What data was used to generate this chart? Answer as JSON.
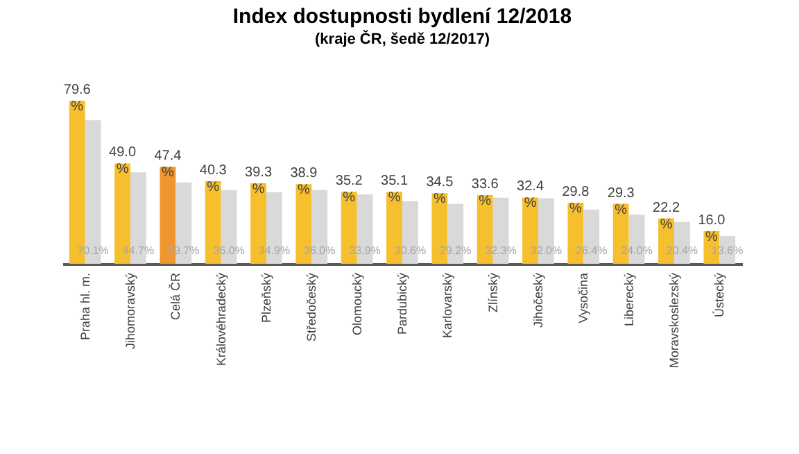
{
  "chart_data": {
    "type": "bar",
    "title": "Index dostupnosti bydlení 12/2018",
    "subtitle": "(kraje ČR, šedě 12/2017)",
    "categories": [
      "Praha hl. m.",
      "Jihomoravský",
      "Celá ČR",
      "Královéhradecký",
      "Plzeňský",
      "Středočeský",
      "Olomoucký",
      "Pardubický",
      "Karlovarský",
      "Zlínský",
      "Jihočeský",
      "Vysočina",
      "Liberecký",
      "Moravskoslezský",
      "Ústecký"
    ],
    "series": [
      {
        "colors": [
          "#f6bf2e",
          "#f6bf2e",
          "#f0962e",
          "#f6bf2e",
          "#f6bf2e",
          "#f6bf2e",
          "#f6bf2e",
          "#f6bf2e",
          "#f6bf2e",
          "#f6bf2e",
          "#f6bf2e",
          "#f6bf2e",
          "#f6bf2e",
          "#f6bf2e",
          "#f6bf2e"
        ],
        "values": [
          79.6,
          49.0,
          47.4,
          40.3,
          39.3,
          38.9,
          35.2,
          35.1,
          34.5,
          33.6,
          32.4,
          29.8,
          29.3,
          22.2,
          16.0
        ],
        "value_labels": [
          "79.6 %",
          "49.0 %",
          "47.4 %",
          "40.3 %",
          "39.3 %",
          "38.9 %",
          "35.2 %",
          "35.1 %",
          "34.5 %",
          "33.6 %",
          "32.4 %",
          "29.8 %",
          "29.3 %",
          "22.2 %",
          "16.0 %"
        ]
      },
      {
        "color": "#d9d9d9",
        "values": [
          70.1,
          44.7,
          39.7,
          36.0,
          34.9,
          36.0,
          33.9,
          30.6,
          29.2,
          32.3,
          32.0,
          26.4,
          24.0,
          20.4,
          13.6
        ],
        "value_labels": [
          "70.1%",
          "44.7%",
          "39.7%",
          "36.0%",
          "34.9%",
          "36.0%",
          "33.9%",
          "30.6%",
          "29.2%",
          "32.3%",
          "32.0%",
          "26.4%",
          "24.0%",
          "20.4%",
          "13.6%"
        ]
      }
    ],
    "grid": false
  }
}
